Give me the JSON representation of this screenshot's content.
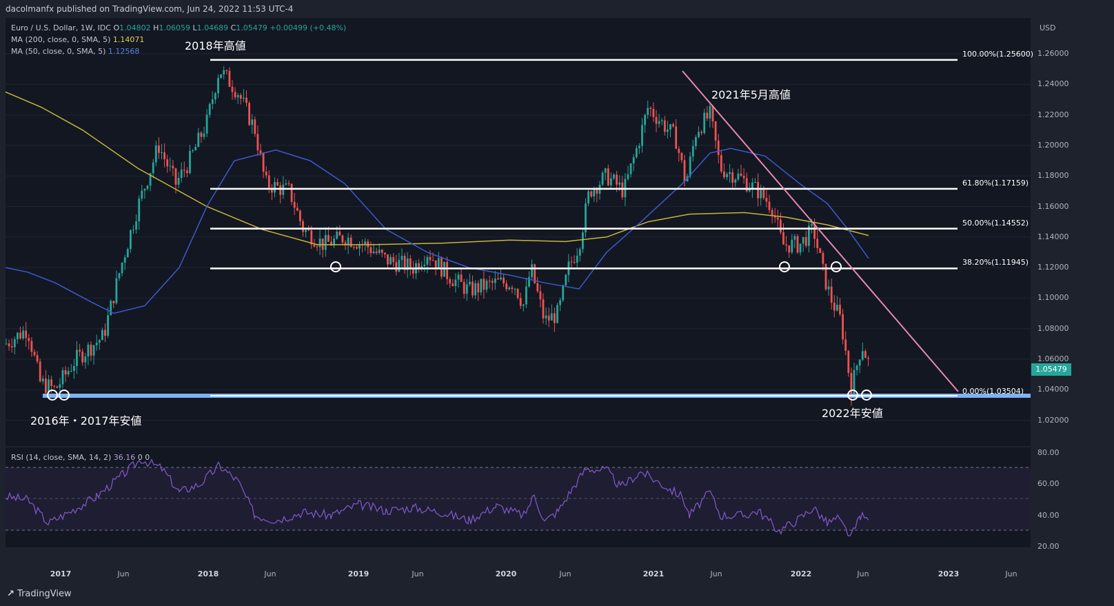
{
  "header": {
    "published_text": "dacolmanfx published on TradingView.com, Jun 24, 2022 11:53 UTC-4"
  },
  "legend": {
    "symbol": "Euro / U.S. Dollar, 1W, IDC",
    "open_label": "O",
    "open": "1.04802",
    "high_label": "H",
    "high": "1.06059",
    "low_label": "L",
    "low": "1.04689",
    "close_label": "C",
    "close": "1.05479",
    "change": "+0.00499 (+0.48%)",
    "ma200_label": "MA (200, close, 0, SMA, 5)",
    "ma200_value": "1.14071",
    "ma50_label": "MA (50, close, 0, SMA, 5)",
    "ma50_value": "1.12568",
    "rsi_label": "RSI (14, close, SMA, 14, 2)",
    "rsi_value": "36.16",
    "rsi_extra": "0 0"
  },
  "annotations": {
    "high_2018": "2018年高値",
    "high_2021": "2021年5月高値",
    "low_2016_2017": "2016年・2017年安値",
    "low_2022": "2022年安値"
  },
  "price_axis": {
    "currency": "USD",
    "last_price": "1.05479",
    "labels": [
      "1.26000",
      "1.24000",
      "1.22000",
      "1.20000",
      "1.18000",
      "1.16000",
      "1.14000",
      "1.12000",
      "1.10000",
      "1.08000",
      "1.06000",
      "1.04000",
      "1.02000"
    ]
  },
  "rsi_axis": {
    "labels": [
      "80.00",
      "60.00",
      "40.00",
      "20.00"
    ]
  },
  "time_axis": {
    "labels": [
      {
        "text": "2017",
        "major": true
      },
      {
        "text": "Jun",
        "major": false
      },
      {
        "text": "2018",
        "major": true
      },
      {
        "text": "Jun",
        "major": false
      },
      {
        "text": "2019",
        "major": true
      },
      {
        "text": "Jun",
        "major": false
      },
      {
        "text": "2020",
        "major": true
      },
      {
        "text": "Jun",
        "major": false
      },
      {
        "text": "2021",
        "major": true
      },
      {
        "text": "Jun",
        "major": false
      },
      {
        "text": "2022",
        "major": true
      },
      {
        "text": "Jun",
        "major": false
      },
      {
        "text": "2023",
        "major": true
      },
      {
        "text": "Jun",
        "major": false
      }
    ]
  },
  "fibonacci": [
    {
      "label": "100.00%(1.25600)",
      "price": 1.256
    },
    {
      "label": "61.80%(1.17159)",
      "price": 1.17159
    },
    {
      "label": "50.00%(1.14552)",
      "price": 1.14552
    },
    {
      "label": "38.20%(1.11945)",
      "price": 1.11945
    },
    {
      "label": "0.00%(1.03504)",
      "price": 1.03504
    }
  ],
  "colors": {
    "up": "#26a69a",
    "down": "#ef5350",
    "ma200": "#c9b53b",
    "ma50": "#3c5bd0",
    "trendline": "#e88bb0",
    "rsi": "#7e57c2",
    "support": "#7fb2f0"
  },
  "footer": {
    "brand": "TradingView"
  }
}
